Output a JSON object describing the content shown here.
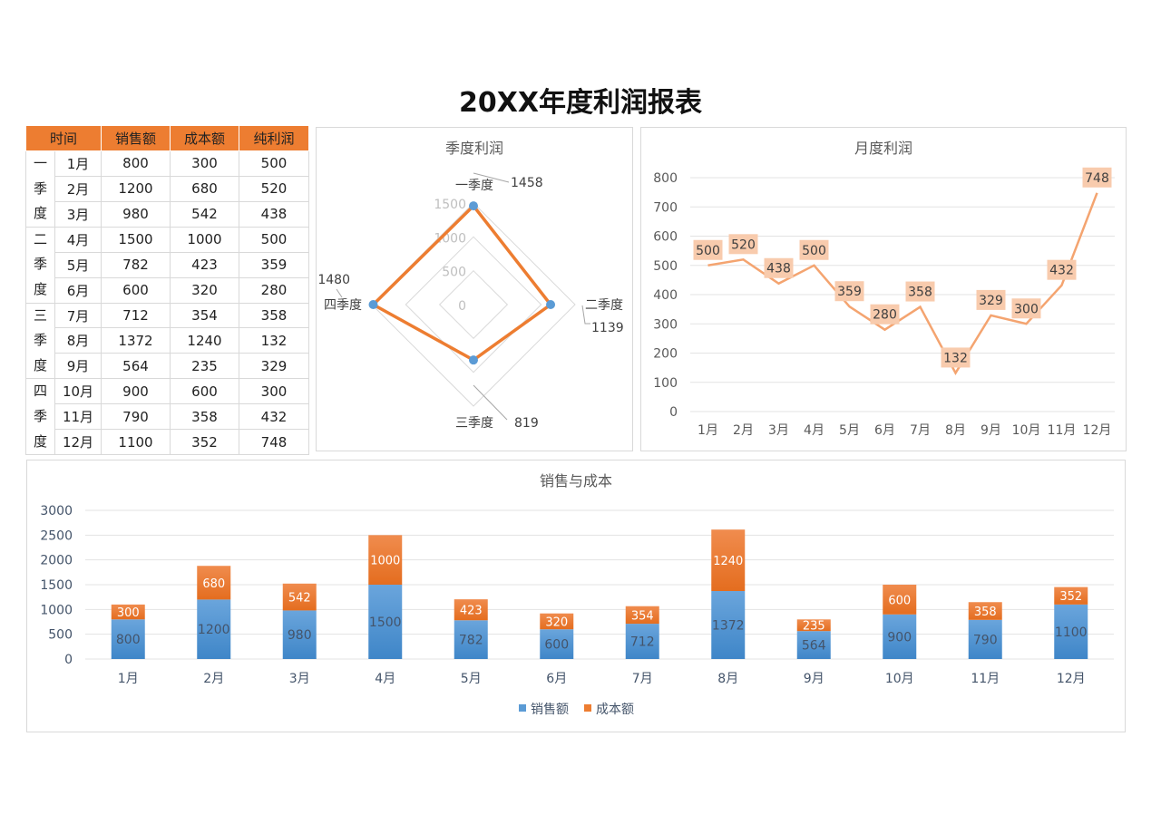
{
  "title": "20XX年度利润报表",
  "table": {
    "headers": [
      "时间",
      "销售额",
      "成本额",
      "纯利润"
    ],
    "quarters": [
      "一季度",
      "二季度",
      "三季度",
      "四季度"
    ],
    "rows": [
      [
        "1月",
        "800",
        "300",
        "500"
      ],
      [
        "2月",
        "1200",
        "680",
        "520"
      ],
      [
        "3月",
        "980",
        "542",
        "438"
      ],
      [
        "4月",
        "1500",
        "1000",
        "500"
      ],
      [
        "5月",
        "782",
        "423",
        "359"
      ],
      [
        "6月",
        "600",
        "320",
        "280"
      ],
      [
        "7月",
        "712",
        "354",
        "358"
      ],
      [
        "8月",
        "1372",
        "1240",
        "132"
      ],
      [
        "9月",
        "564",
        "235",
        "329"
      ],
      [
        "10月",
        "900",
        "600",
        "300"
      ],
      [
        "11月",
        "790",
        "358",
        "432"
      ],
      [
        "12月",
        "1100",
        "352",
        "748"
      ]
    ],
    "header_color": "#ed7d31"
  },
  "chart_data": [
    {
      "type": "radar",
      "title": "季度利润",
      "categories": [
        "一季度",
        "二季度",
        "三季度",
        "四季度"
      ],
      "values": [
        1458,
        1139,
        819,
        1480
      ],
      "ticks": [
        0,
        500,
        1000,
        1500
      ],
      "range": [
        0,
        1500
      ],
      "line_color": "#ed7d31",
      "marker_color": "#5b9bd5"
    },
    {
      "type": "line",
      "title": "月度利润",
      "categories": [
        "1月",
        "2月",
        "3月",
        "4月",
        "5月",
        "6月",
        "7月",
        "8月",
        "9月",
        "10月",
        "11月",
        "12月"
      ],
      "values": [
        500,
        520,
        438,
        500,
        359,
        280,
        358,
        132,
        329,
        300,
        432,
        748
      ],
      "ylim": [
        0,
        800
      ],
      "yticks": [
        0,
        100,
        200,
        300,
        400,
        500,
        600,
        700,
        800
      ],
      "grid": true,
      "line_color": "#f4a470",
      "label_bg": "#f8cbad"
    },
    {
      "type": "bar",
      "stacked": true,
      "title": "销售与成本",
      "categories": [
        "1月",
        "2月",
        "3月",
        "4月",
        "5月",
        "6月",
        "7月",
        "8月",
        "9月",
        "10月",
        "11月",
        "12月"
      ],
      "series": [
        {
          "name": "销售额",
          "values": [
            800,
            1200,
            980,
            1500,
            782,
            600,
            712,
            1372,
            564,
            900,
            790,
            1100
          ],
          "color": "#5b9bd5"
        },
        {
          "name": "成本额",
          "values": [
            300,
            680,
            542,
            1000,
            423,
            320,
            354,
            1240,
            235,
            600,
            358,
            352
          ],
          "color": "#ed7d31"
        }
      ],
      "ylim": [
        0,
        3000
      ],
      "yticks": [
        0,
        500,
        1000,
        1500,
        2000,
        2500,
        3000
      ],
      "grid": true,
      "legend": "bottom"
    }
  ]
}
